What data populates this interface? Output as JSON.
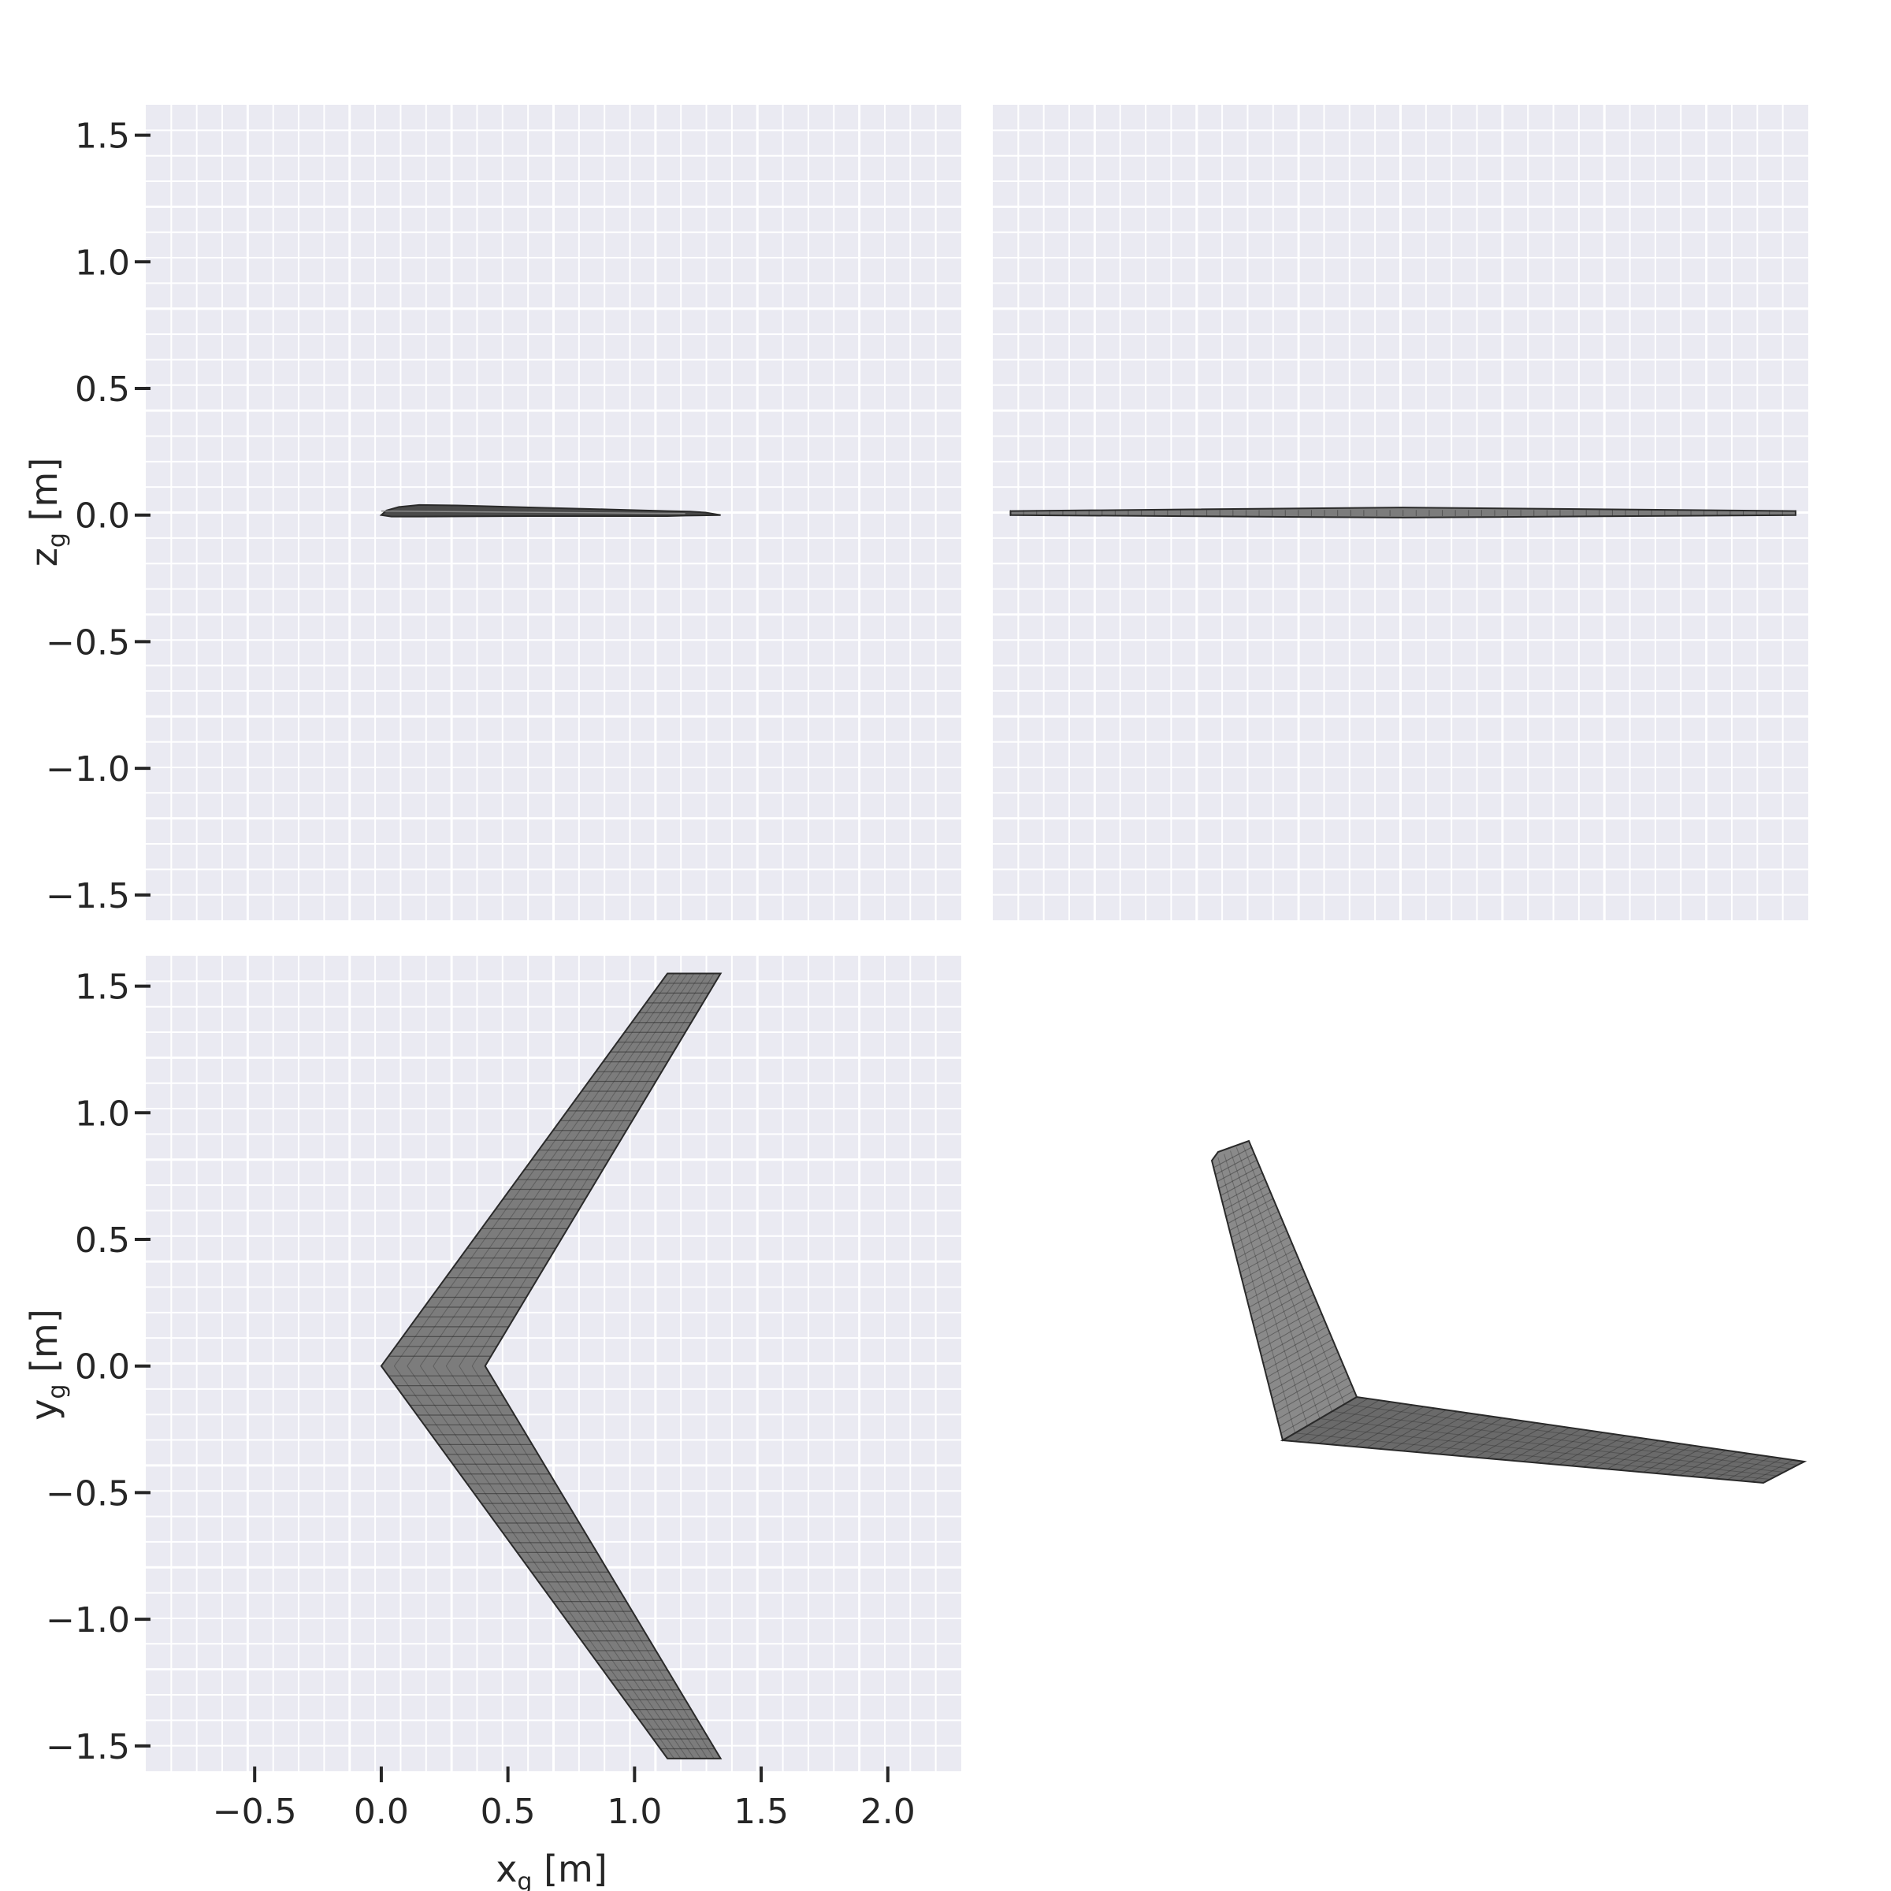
{
  "figure": {
    "background": "#ffffff",
    "panel_background": "#eaeaf2",
    "grid_color": "#ffffff",
    "mesh_fill": "#7c7c7c",
    "mesh_edge": "#2a2a2a",
    "text_color": "#262626"
  },
  "chart_data": [
    {
      "type": "line",
      "view": "side",
      "xlabel": "",
      "ylabel_var": "z",
      "ylabel_sub": "g",
      "ylabel_unit": " [m]",
      "xlim": [
        -0.93,
        2.29
      ],
      "ylim": [
        -1.6,
        1.62
      ],
      "yticks": [
        1.5,
        1.0,
        0.5,
        0.0,
        -0.5,
        -1.0,
        -1.5
      ],
      "ytick_labels": [
        "1.5",
        "1.0",
        "0.5",
        "0.0",
        "−0.5",
        "−1.0",
        "−1.5"
      ],
      "grid": true,
      "series": [
        {
          "upper": [
            [
              0.0,
              0.0
            ],
            [
              0.02,
              0.018
            ],
            [
              0.07,
              0.032
            ],
            [
              0.15,
              0.04
            ],
            [
              0.3,
              0.038
            ],
            [
              0.6,
              0.03
            ],
            [
              0.9,
              0.022
            ],
            [
              1.13,
              0.016
            ],
            [
              1.22,
              0.014
            ],
            [
              1.28,
              0.01
            ],
            [
              1.34,
              0.0
            ]
          ],
          "lower": [
            [
              1.34,
              0.0
            ],
            [
              1.2,
              -0.002
            ],
            [
              1.13,
              -0.004
            ],
            [
              0.6,
              -0.004
            ],
            [
              0.15,
              -0.006
            ],
            [
              0.04,
              -0.006
            ],
            [
              0.0,
              0.0
            ]
          ]
        }
      ]
    },
    {
      "type": "line",
      "view": "front",
      "xlabel": "",
      "ylabel_var": "",
      "xlim": [
        -1.62,
        1.6
      ],
      "ylim": [
        -1.6,
        1.62
      ],
      "grid": true,
      "series": [
        {
          "y_span": [
            -1.55,
            1.55
          ],
          "z_root": [
            -0.01,
            0.03
          ],
          "z_tip": [
            0.0,
            0.016
          ]
        }
      ]
    },
    {
      "type": "line",
      "view": "top",
      "xlabel_var": "x",
      "xlabel_sub": "g",
      "xlabel_unit": " [m]",
      "ylabel_var": "y",
      "ylabel_sub": "g",
      "ylabel_unit": " [m]",
      "xlim": [
        -0.93,
        2.29
      ],
      "ylim": [
        -1.6,
        1.62
      ],
      "xticks": [
        -0.5,
        0.0,
        0.5,
        1.0,
        1.5,
        2.0
      ],
      "xtick_labels": [
        "−0.5",
        "0.0",
        "0.5",
        "1.0",
        "1.5",
        "2.0"
      ],
      "yticks": [
        1.5,
        1.0,
        0.5,
        0.0,
        -0.5,
        -1.0,
        -1.5
      ],
      "ytick_labels": [
        "1.5",
        "1.0",
        "0.5",
        "0.0",
        "−0.5",
        "−1.0",
        "−1.5"
      ],
      "grid": true,
      "series": [
        {
          "planform": [
            [
              0.0,
              0.0
            ],
            [
              1.13,
              1.55
            ],
            [
              1.34,
              1.55
            ],
            [
              0.41,
              0.0
            ],
            [
              1.34,
              -1.55
            ],
            [
              1.13,
              -1.55
            ]
          ],
          "chord_lines": 40
        }
      ]
    },
    {
      "type": "line",
      "view": "isometric",
      "xlabel": "",
      "ylabel_var": "",
      "grid": false
    }
  ]
}
